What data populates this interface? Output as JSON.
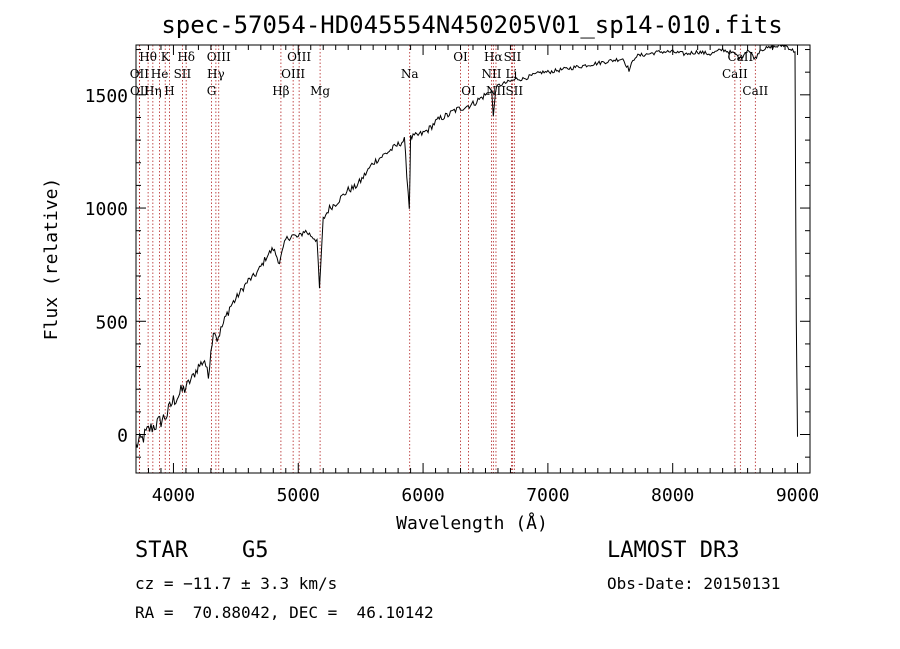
{
  "chart_data": {
    "type": "line",
    "title": "spec-57054-HD045554N450205V01_sp14-010.fits",
    "xlabel": "Wavelength (Å)",
    "ylabel": "Flux (relative)",
    "xlim": [
      3700,
      9100
    ],
    "ylim": [
      -170,
      1720
    ],
    "xticks": [
      4000,
      5000,
      6000,
      7000,
      8000,
      9000
    ],
    "yticks": [
      0,
      500,
      1000,
      1500
    ],
    "grid": false,
    "series": [
      {
        "values_x": [
          3700,
          3750,
          3800,
          3850,
          3900,
          3950,
          3980,
          4000,
          4050,
          4100,
          4150,
          4200,
          4250,
          4280,
          4300,
          4330,
          4350,
          4400,
          4450,
          4500,
          4550,
          4600,
          4650,
          4700,
          4750,
          4800,
          4850,
          4900,
          4950,
          5000,
          5050,
          5100,
          5150,
          5170,
          5200,
          5250,
          5300,
          5350,
          5400,
          5450,
          5500,
          5550,
          5600,
          5650,
          5700,
          5750,
          5800,
          5850,
          5890,
          5900,
          5950,
          6000,
          6050,
          6100,
          6150,
          6200,
          6250,
          6300,
          6350,
          6400,
          6450,
          6500,
          6550,
          6563,
          6580,
          6600,
          6650,
          6700,
          6750,
          6800,
          6850,
          6900,
          6950,
          7000,
          7100,
          7200,
          7300,
          7400,
          7500,
          7600,
          7650,
          7700,
          7800,
          7900,
          8000,
          8100,
          8200,
          8300,
          8400,
          8500,
          8542,
          8600,
          8662,
          8700,
          8800,
          8900,
          8950,
          8980,
          8990,
          9000
        ],
        "values_y": [
          -50,
          -20,
          20,
          40,
          60,
          90,
          130,
          150,
          180,
          210,
          250,
          300,
          330,
          250,
          380,
          470,
          420,
          490,
          560,
          600,
          640,
          680,
          700,
          740,
          790,
          820,
          760,
          860,
          880,
          870,
          900,
          880,
          860,
          640,
          950,
          1000,
          1020,
          1050,
          1080,
          1090,
          1120,
          1160,
          1200,
          1220,
          1240,
          1260,
          1280,
          1300,
          1000,
          1310,
          1320,
          1330,
          1350,
          1380,
          1400,
          1410,
          1430,
          1440,
          1450,
          1460,
          1480,
          1500,
          1520,
          1400,
          1520,
          1540,
          1550,
          1560,
          1570,
          1570,
          1580,
          1590,
          1600,
          1600,
          1610,
          1620,
          1630,
          1640,
          1650,
          1660,
          1610,
          1670,
          1680,
          1690,
          1690,
          1680,
          1690,
          1680,
          1700,
          1680,
          1660,
          1700,
          1660,
          1700,
          1710,
          1720,
          1700,
          1690,
          500,
          -10
        ]
      }
    ],
    "lines": [
      {
        "label": "Hθ",
        "x": 3797,
        "row": 1
      },
      {
        "label": "OII",
        "x": 3727,
        "row": 2
      },
      {
        "label": "OII",
        "x": 3729,
        "row": 3
      },
      {
        "label": "He",
        "x": 3889,
        "row": 2
      },
      {
        "label": "Hη",
        "x": 3835,
        "row": 3
      },
      {
        "label": "K",
        "x": 3934,
        "row": 1
      },
      {
        "label": "SII",
        "x": 4072,
        "row": 2
      },
      {
        "label": "H",
        "x": 3968,
        "row": 3
      },
      {
        "label": "Hδ",
        "x": 4102,
        "row": 1
      },
      {
        "label": "OIII",
        "x": 4363,
        "row": 1
      },
      {
        "label": "Hγ",
        "x": 4340,
        "row": 2
      },
      {
        "label": "G",
        "x": 4305,
        "row": 3
      },
      {
        "label": "OIII",
        "x": 5007,
        "row": 1
      },
      {
        "label": "OIII",
        "x": 4959,
        "row": 2
      },
      {
        "label": "Hβ",
        "x": 4861,
        "row": 3
      },
      {
        "label": "Mg",
        "x": 5175,
        "row": 3
      },
      {
        "label": "Na",
        "x": 5893,
        "row": 2
      },
      {
        "label": "OI",
        "x": 6300,
        "row": 1
      },
      {
        "label": "OI",
        "x": 6364,
        "row": 3
      },
      {
        "label": "Hα",
        "x": 6563,
        "row": 1
      },
      {
        "label": "SII",
        "x": 6716,
        "row": 1
      },
      {
        "label": "NII",
        "x": 6548,
        "row": 2
      },
      {
        "label": "Li",
        "x": 6708,
        "row": 2
      },
      {
        "label": "NII",
        "x": 6584,
        "row": 3
      },
      {
        "label": "SII",
        "x": 6731,
        "row": 3
      },
      {
        "label": "CaII",
        "x": 8542,
        "row": 1
      },
      {
        "label": "CaII",
        "x": 8498,
        "row": 2
      },
      {
        "label": "CaII",
        "x": 8662,
        "row": 3
      }
    ]
  },
  "info": {
    "class": "STAR",
    "subclass": "G5",
    "cz": "cz = −11.7 ± 3.3 km/s",
    "radec": "RA =  70.88042, DEC =  46.10142",
    "survey": "LAMOST DR3",
    "obsdate": "Obs-Date: 20150131"
  }
}
